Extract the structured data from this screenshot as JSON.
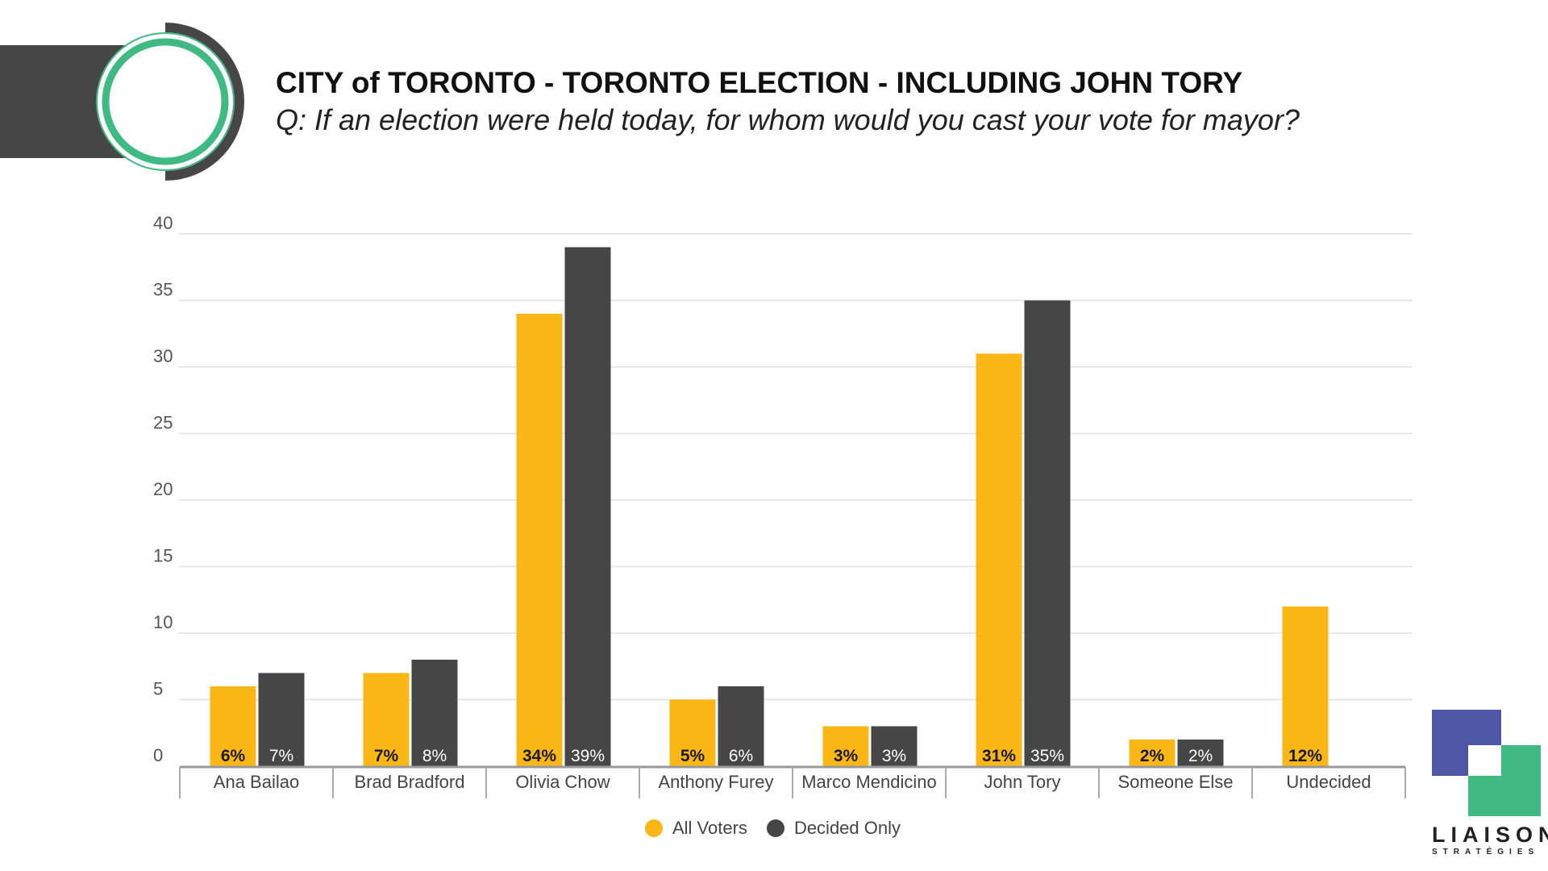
{
  "header": {
    "title": "CITY of TORONTO - TORONTO ELECTION - INCLUDING JOHN TORY",
    "subtitle": "Q: If an election were held today, for whom would you cast your vote for mayor?"
  },
  "brand": {
    "name": "LIAISON",
    "sub": "STRATÉGIES",
    "colors": {
      "blue": "#4e57a6",
      "green": "#3fba82",
      "dark": "#464646"
    }
  },
  "chart_data": {
    "type": "bar",
    "title": "CITY of TORONTO - TORONTO ELECTION - INCLUDING JOHN TORY",
    "xlabel": "",
    "ylabel": "",
    "ylim": [
      0,
      40
    ],
    "yticks": [
      0,
      5,
      10,
      15,
      20,
      25,
      30,
      35,
      40
    ],
    "grid": true,
    "legend_position": "bottom-center",
    "categories": [
      "Ana Bailao",
      "Brad Bradford",
      "Olivia Chow",
      "Anthony Furey",
      "Marco Mendicino",
      "John Tory",
      "Someone Else",
      "Undecided"
    ],
    "series": [
      {
        "name": "All Voters",
        "color": "#fbb716",
        "values": [
          6,
          7,
          34,
          5,
          3,
          31,
          2,
          12
        ],
        "labels": [
          "6%",
          "7%",
          "34%",
          "5%",
          "3%",
          "31%",
          "2%",
          "12%"
        ]
      },
      {
        "name": "Decided Only",
        "color": "#464646",
        "values": [
          7,
          8,
          39,
          6,
          3,
          35,
          2,
          null
        ],
        "labels": [
          "7%",
          "8%",
          "39%",
          "6%",
          "3%",
          "35%",
          "2%",
          ""
        ]
      }
    ]
  }
}
